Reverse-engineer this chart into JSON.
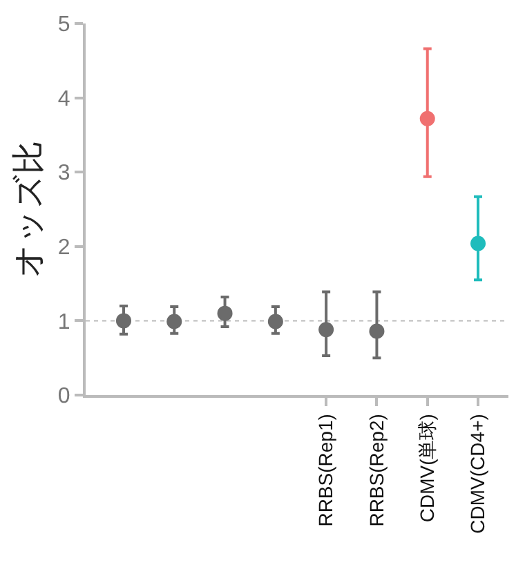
{
  "chart_data": {
    "type": "scatter",
    "ylabel": "オッズ比",
    "categories": [
      null,
      null,
      null,
      null,
      "RRBS(Rep1)",
      "RRBS(Rep2)",
      "CDMV(単球)",
      "CDMV(CD4+)"
    ],
    "series": [
      {
        "values": [
          1.0,
          0.99,
          1.1,
          0.99,
          0.88,
          0.86,
          3.72,
          2.04
        ],
        "colors": [
          "#6b6b6b",
          "#6b6b6b",
          "#6b6b6b",
          "#6b6b6b",
          "#6b6b6b",
          "#6b6b6b",
          "#f07070",
          "#1fbcbc"
        ],
        "errors": [
          [
            0.82,
            1.2
          ],
          [
            0.83,
            1.19
          ],
          [
            0.92,
            1.32
          ],
          [
            0.83,
            1.19
          ],
          [
            0.53,
            1.39
          ],
          [
            0.5,
            1.39
          ],
          [
            2.94,
            4.66
          ],
          [
            1.55,
            2.67
          ]
        ]
      }
    ],
    "ylim": [
      0,
      5
    ],
    "yticks": [
      0,
      1,
      2,
      3,
      4,
      5
    ],
    "ref_lines": [
      {
        "axis": "y",
        "value": 1,
        "color": "#bbbbbb",
        "line_style": "dotted"
      }
    ],
    "marker": "circle",
    "grid": false
  }
}
